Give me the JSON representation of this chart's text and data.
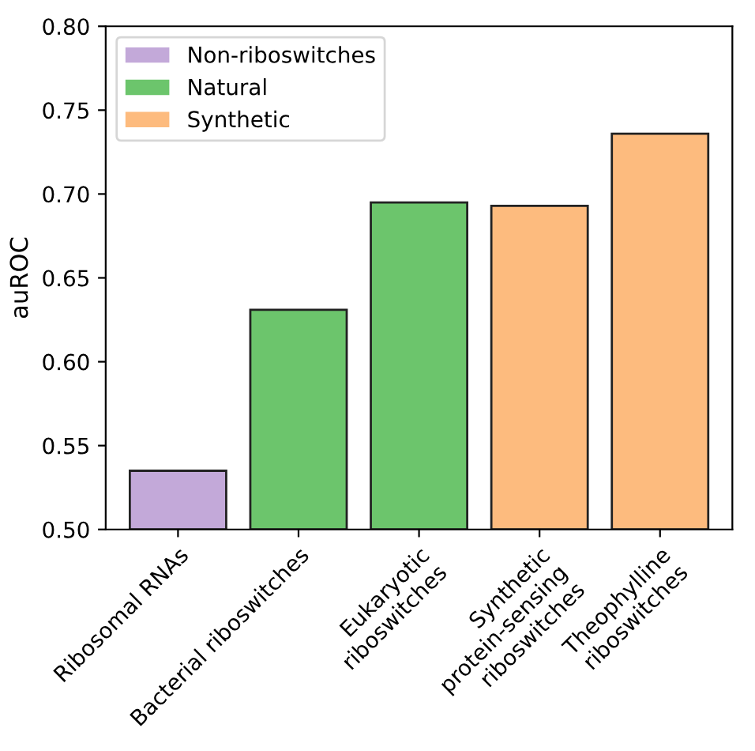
{
  "chart_data": {
    "type": "bar",
    "ylabel": "auROC",
    "categories": [
      "Ribosomal RNAs",
      "Bacterial riboswitches",
      "Eukaryotic\nriboswitches",
      "Synthetic\nprotein-sensing\nriboswitches",
      "Theophylline\nriboswitches"
    ],
    "series": [
      {
        "name": "Non-riboswitches",
        "color": "#c3a9d9",
        "values": [
          0.535,
          null,
          null,
          null,
          null
        ]
      },
      {
        "name": "Natural",
        "color": "#6cc56c",
        "values": [
          null,
          0.631,
          0.695,
          null,
          null
        ]
      },
      {
        "name": "Synthetic",
        "color": "#fdbb7e",
        "values": [
          null,
          null,
          null,
          0.693,
          0.736
        ]
      }
    ],
    "ylim": [
      0.5,
      0.8
    ],
    "yticks": [
      {
        "value": 0.5,
        "label": "0.50"
      },
      0.55,
      {
        "value": 0.6,
        "label": "0.60"
      },
      0.65,
      {
        "value": 0.7,
        "label": "0.70"
      },
      0.75,
      {
        "value": 0.8,
        "label": "0.80"
      }
    ],
    "grid": false,
    "legend": "top left"
  }
}
